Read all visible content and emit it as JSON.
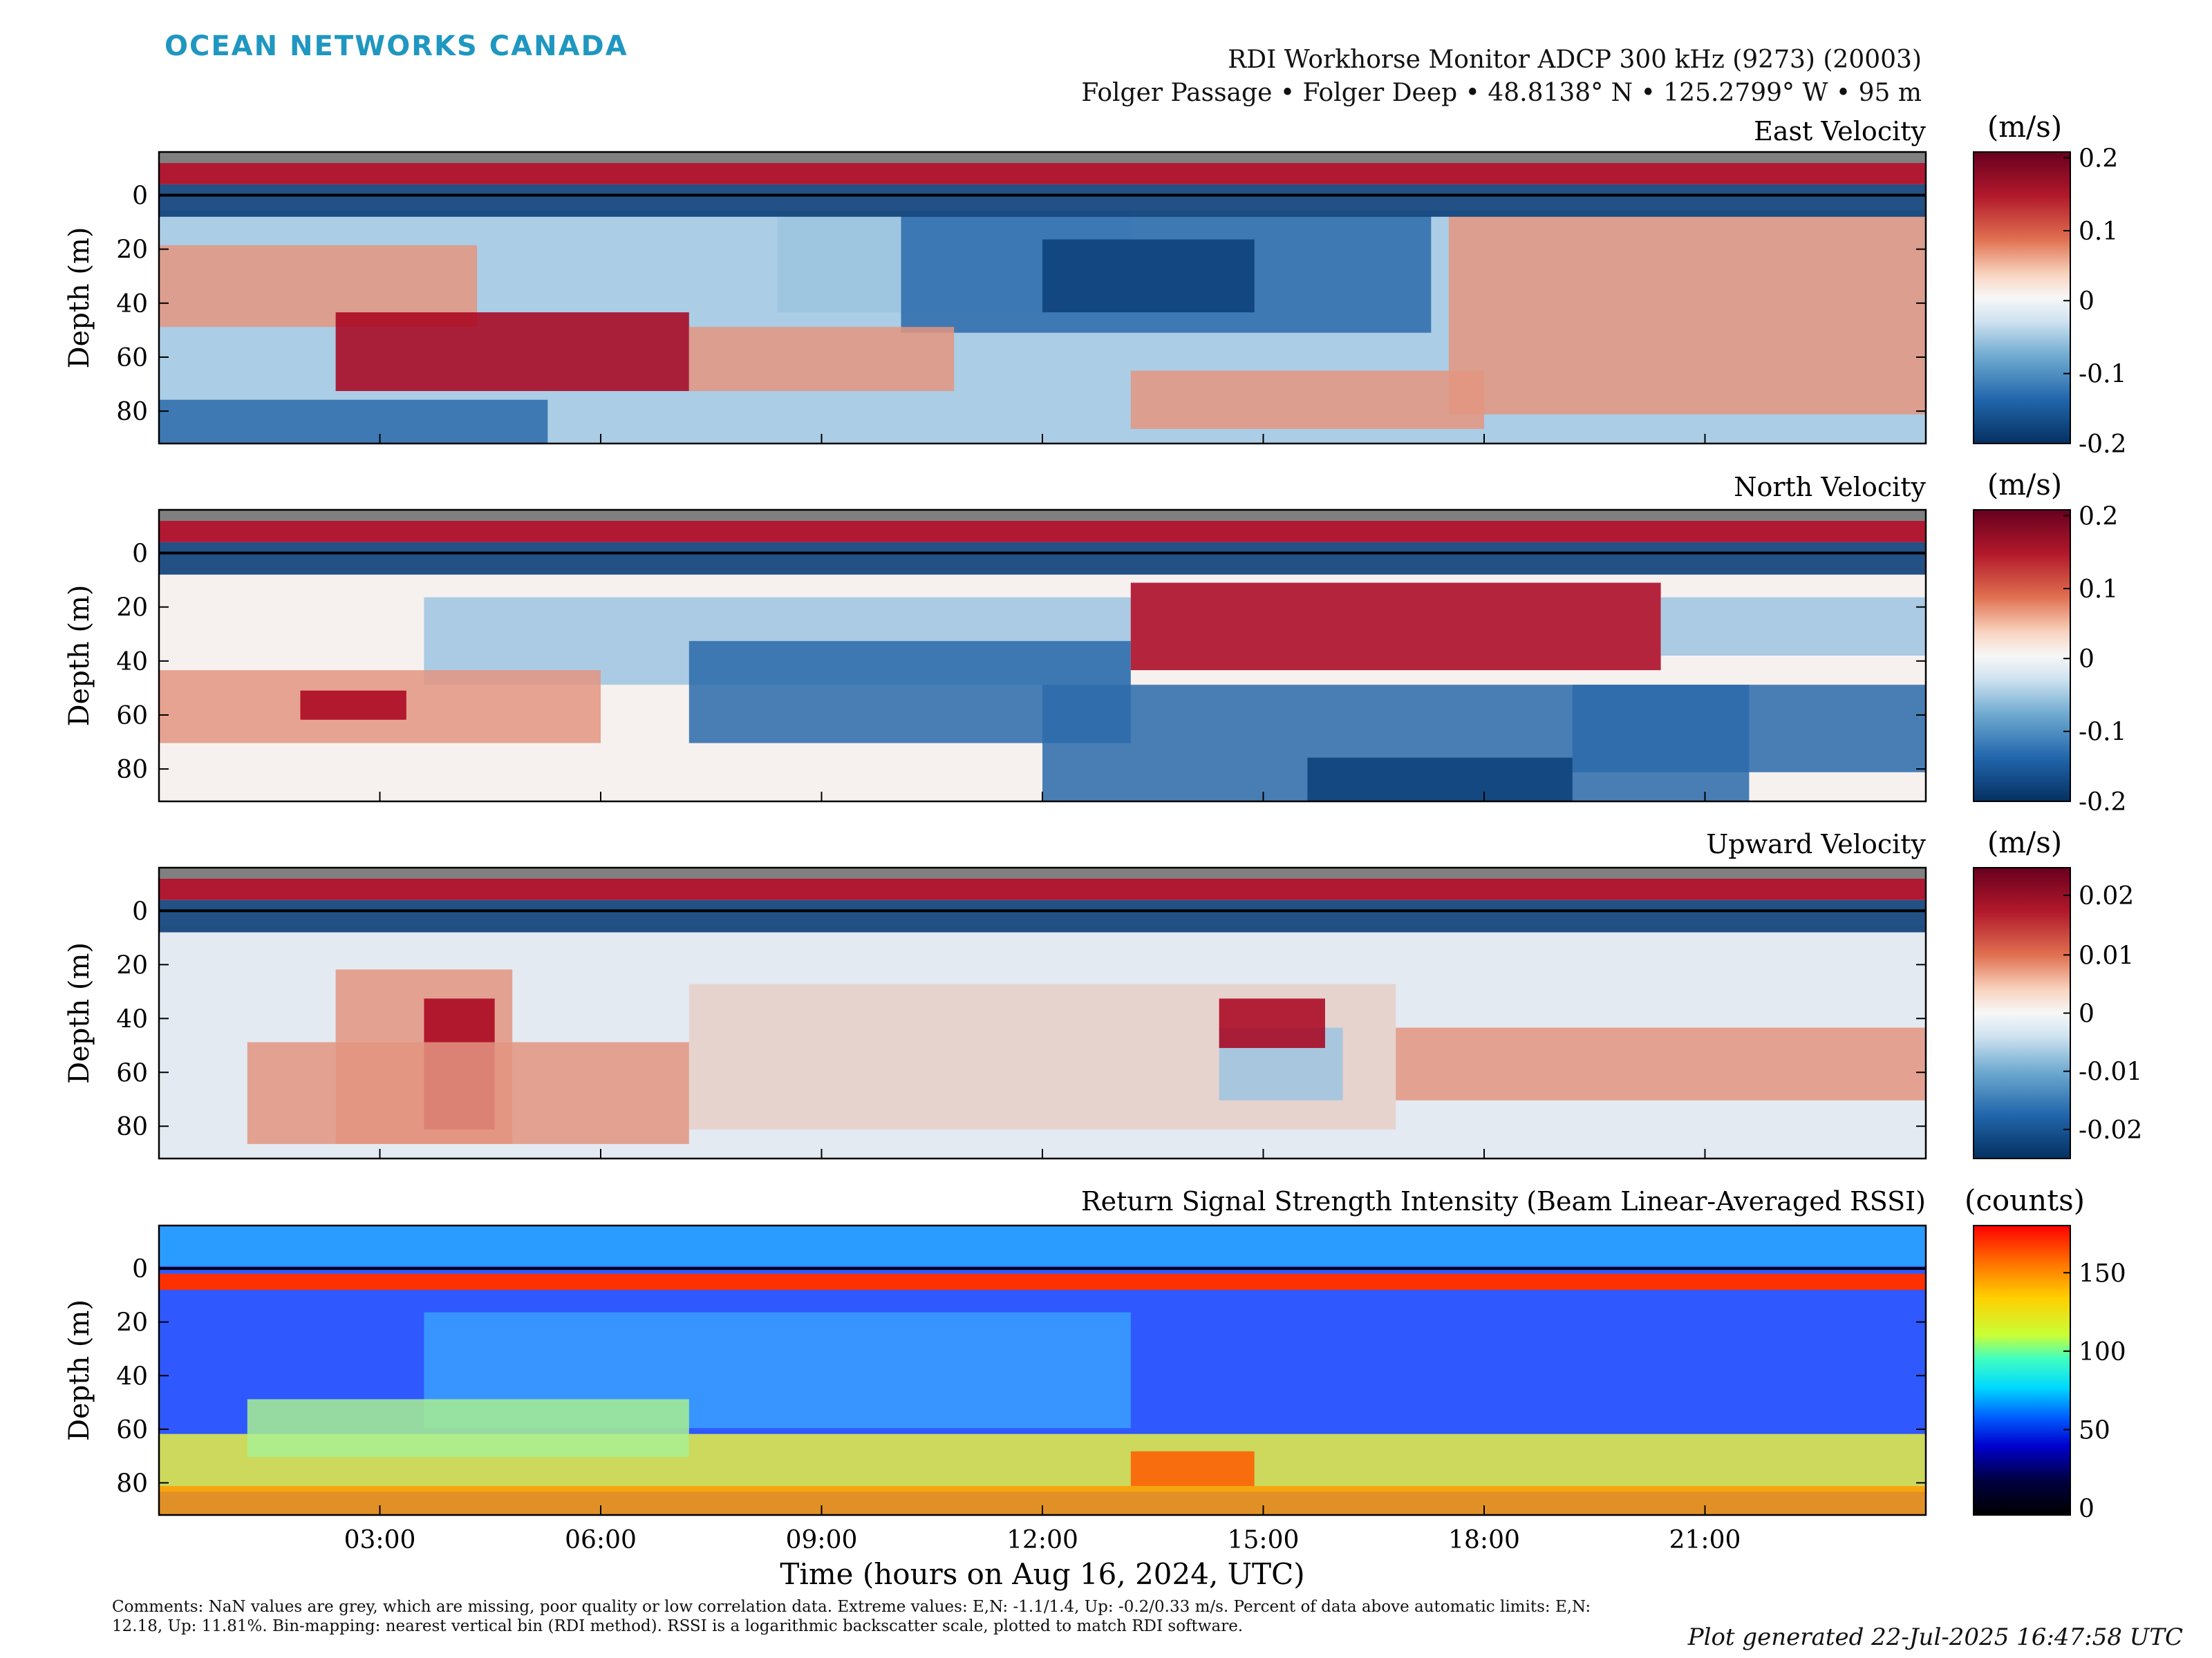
{
  "brand": "OCEAN NETWORKS CANADA",
  "header": {
    "instrument": "RDI Workhorse Monitor ADCP 300 kHz (9273) (20003)",
    "location": "Folger Passage • Folger Deep • 48.8138° N • 125.2799° W • 95 m"
  },
  "chart_data": [
    {
      "type": "heatmap",
      "title": "East Velocity",
      "ylabel": "Depth (m)",
      "x_ticks": [
        "03:00",
        "06:00",
        "09:00",
        "12:00",
        "15:00",
        "18:00",
        "21:00"
      ],
      "y_ticks": [
        0,
        20,
        40,
        60,
        80
      ],
      "ylim": [
        92,
        -16
      ],
      "colorbar": {
        "label": "(m/s)",
        "range": [
          -0.2,
          0.2
        ],
        "ticks": [
          "0.2",
          "0.1",
          "0",
          "-0.1",
          "-0.2"
        ],
        "colormap": "red-white-blue"
      }
    },
    {
      "type": "heatmap",
      "title": "North Velocity",
      "ylabel": "Depth (m)",
      "x_ticks": [
        "03:00",
        "06:00",
        "09:00",
        "12:00",
        "15:00",
        "18:00",
        "21:00"
      ],
      "y_ticks": [
        0,
        20,
        40,
        60,
        80
      ],
      "ylim": [
        92,
        -16
      ],
      "colorbar": {
        "label": "(m/s)",
        "range": [
          -0.2,
          0.2
        ],
        "ticks": [
          "0.2",
          "0.1",
          "0",
          "-0.1",
          "-0.2"
        ],
        "colormap": "red-white-blue"
      }
    },
    {
      "type": "heatmap",
      "title": "Upward Velocity",
      "ylabel": "Depth (m)",
      "x_ticks": [
        "03:00",
        "06:00",
        "09:00",
        "12:00",
        "15:00",
        "18:00",
        "21:00"
      ],
      "y_ticks": [
        0,
        20,
        40,
        60,
        80
      ],
      "ylim": [
        92,
        -16
      ],
      "colorbar": {
        "label": "(m/s)",
        "range": [
          -0.025,
          0.025
        ],
        "ticks": [
          "0.02",
          "0.01",
          "0",
          "-0.01",
          "-0.02"
        ],
        "colormap": "red-white-blue"
      }
    },
    {
      "type": "heatmap",
      "title": "Return Signal Strength Intensity (Beam Linear-Averaged RSSI)",
      "ylabel": "Depth (m)",
      "xlabel": "Time (hours on Aug 16, 2024, UTC)",
      "x_ticks": [
        "03:00",
        "06:00",
        "09:00",
        "12:00",
        "15:00",
        "18:00",
        "21:00"
      ],
      "y_ticks": [
        0,
        20,
        40,
        60,
        80
      ],
      "ylim": [
        92,
        -16
      ],
      "colorbar": {
        "label": "(counts)",
        "range": [
          0,
          180
        ],
        "ticks": [
          "150",
          "100",
          "50",
          "0"
        ],
        "colormap": "jet"
      }
    }
  ],
  "comments": "Comments: NaN values are grey, which are missing, poor quality or low correlation data. Extreme values: E,N: -1.1/1.4, Up: -0.2/0.33 m/s. Percent of data above automatic limits: E,N: 12.18, Up: 11.81%. Bin-mapping: nearest vertical bin (RDI method). RSSI is a logarithmic backscatter scale, plotted to match RDI software.",
  "generated": "Plot generated 22-Jul-2025 16:47:58 UTC"
}
